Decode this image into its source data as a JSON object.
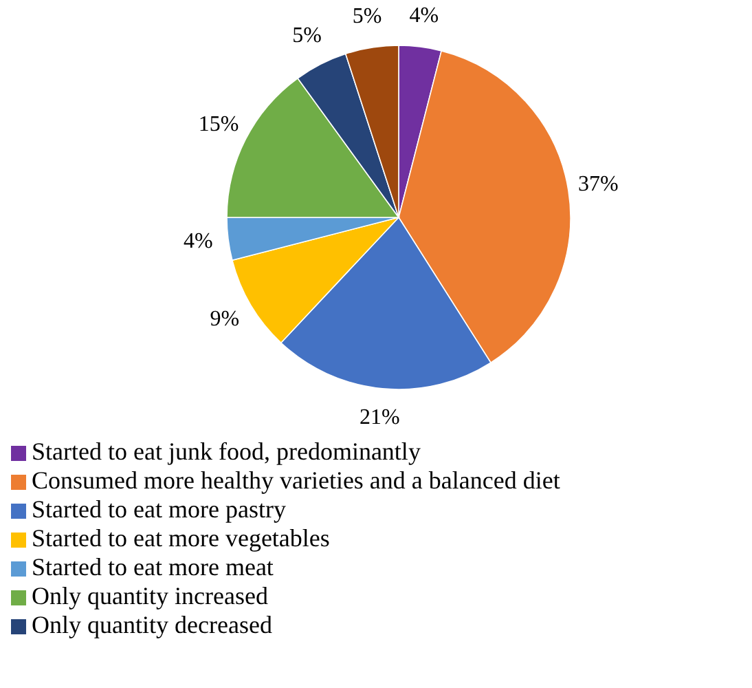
{
  "chart_data": {
    "type": "pie",
    "categories": [
      "Started to eat junk food, predominantly",
      "Consumed more healthy varieties and a balanced diet",
      "Started to eat more pastry",
      "Started to eat more vegetables",
      "Started to eat more meat",
      "Only quantity increased",
      "Only quantity decreased",
      null
    ],
    "values": [
      4,
      37,
      21,
      9,
      4,
      15,
      5,
      5
    ],
    "value_labels": [
      "4%",
      "37%",
      "21%",
      "9%",
      "4%",
      "15%",
      "5%",
      "5%"
    ],
    "colors": [
      "#7030a0",
      "#ed7d31",
      "#4472c4",
      "#ffc000",
      "#5b9bd5",
      "#70ad47",
      "#264478",
      "#9e480e"
    ],
    "legend": "bottom"
  }
}
